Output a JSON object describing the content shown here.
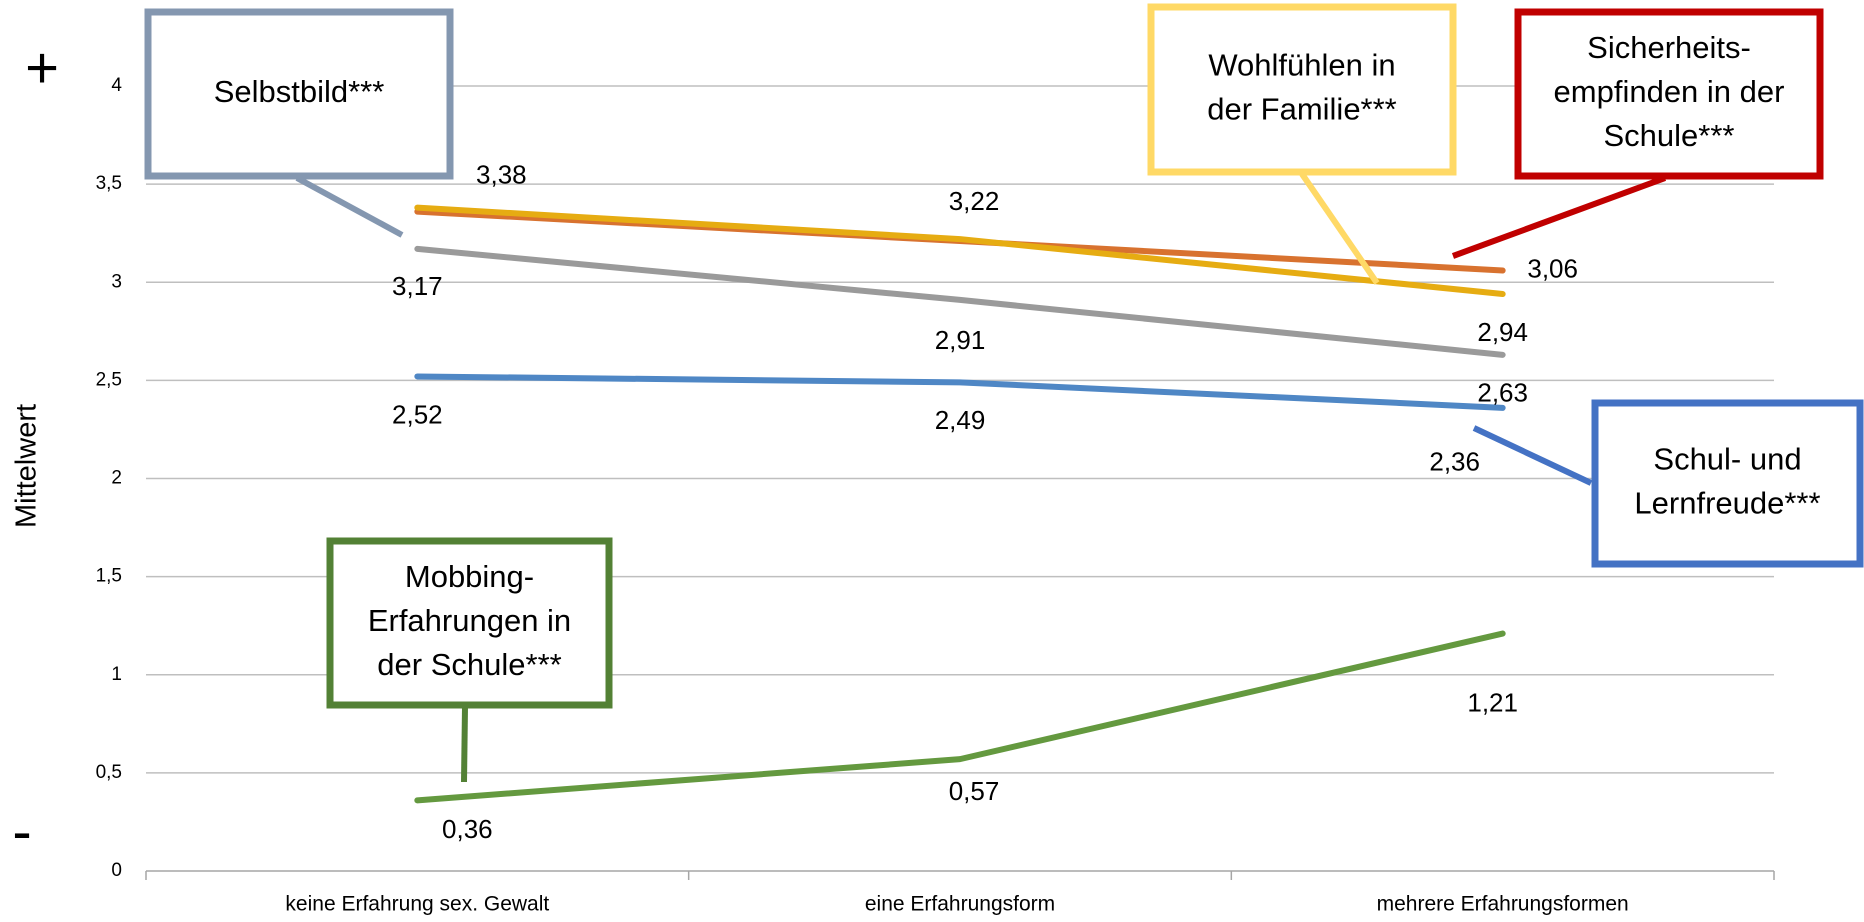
{
  "chart_data": {
    "type": "line",
    "y_label": "Mittelwert",
    "top_symbol": "+",
    "bottom_symbol": "-",
    "categories": [
      "keine Erfahrung sex. Gewalt",
      "eine Erfahrungsform",
      "mehrere Erfahrungsformen"
    ],
    "ylim": [
      0,
      4
    ],
    "yticks": [
      0,
      {
        "value": 0.5,
        "label": "0,5"
      },
      1,
      {
        "value": 1.5,
        "label": "1,5"
      },
      2,
      {
        "value": 2.5,
        "label": "2,5"
      },
      3,
      {
        "value": 3.5,
        "label": "3,5"
      },
      4
    ],
    "grid": true,
    "series": [
      {
        "name": "Sicherheitsempfinden",
        "color": "#d8722f",
        "values": [
          3.36,
          3.21,
          3.06
        ],
        "value_labels": [
          null,
          null,
          "3,06"
        ]
      },
      {
        "name": "Wohlfühlen",
        "color": "#e6ac12",
        "values": [
          3.38,
          3.22,
          2.94
        ],
        "value_labels": [
          "3,38",
          "3,22",
          "2,94"
        ]
      },
      {
        "name": "Selbstbild",
        "color": "#9a9a9a",
        "values": [
          3.17,
          2.91,
          2.63
        ],
        "value_labels": [
          "3,17",
          "2,91",
          "2,63"
        ]
      },
      {
        "name": "Schul- und Lernfreude",
        "color": "#4f87c5",
        "values": [
          2.52,
          2.49,
          2.36
        ],
        "value_labels": [
          "2,52",
          "2,49",
          "2,36"
        ]
      },
      {
        "name": "Mobbing",
        "color": "#64993f",
        "values": [
          0.36,
          0.57,
          1.21
        ],
        "value_labels": [
          "0,36",
          "0,57",
          "1,21"
        ]
      }
    ],
    "annotations": [
      {
        "lines": [
          "Selbstbild***"
        ],
        "color": "#8497b0"
      },
      {
        "lines": [
          "Wohlfühlen in",
          "der Familie***"
        ],
        "color": "#ffd966"
      },
      {
        "lines": [
          "Sicherheits-",
          "empfinden in der",
          "Schule***"
        ],
        "color": "#c00000"
      },
      {
        "lines": [
          "Schul- und",
          "Lernfreude***"
        ],
        "color": "#4472c4"
      },
      {
        "lines": [
          "Mobbing-",
          "Erfahrungen in",
          "der Schule***"
        ],
        "color": "#538135"
      }
    ]
  }
}
